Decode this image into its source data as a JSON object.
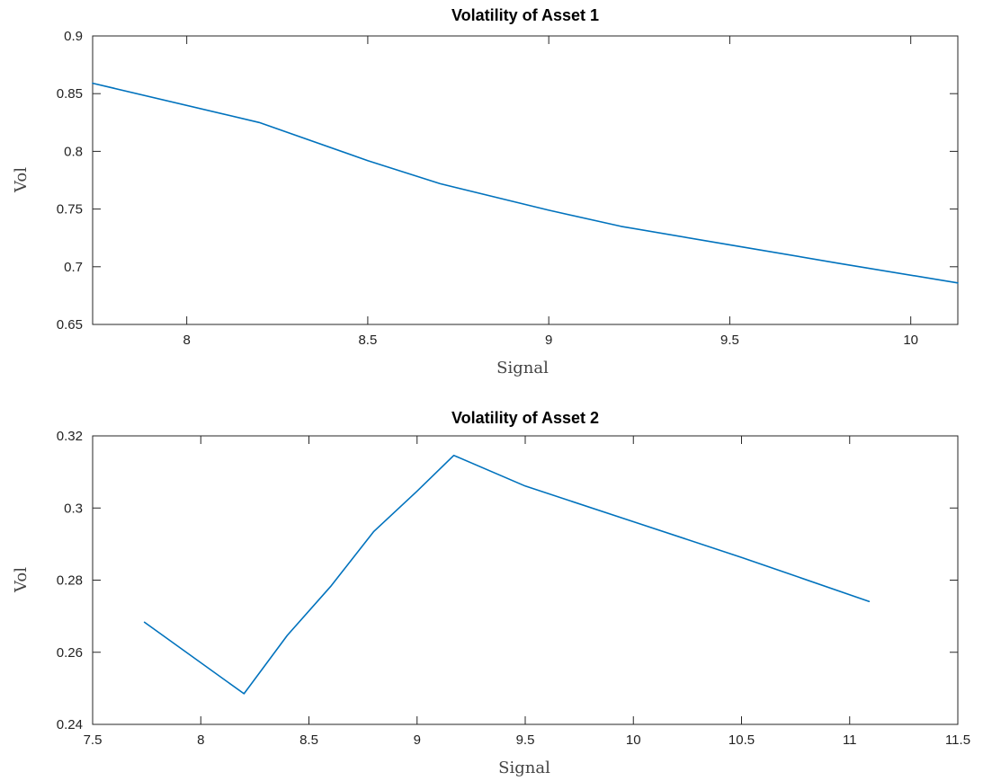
{
  "chart_data": [
    {
      "type": "line",
      "title": "Volatility of Asset 1",
      "xlabel": "Signal",
      "ylabel": "Vol",
      "xlim": [
        7.74,
        10.13
      ],
      "ylim": [
        0.65,
        0.9
      ],
      "xticks": [
        8,
        8.5,
        9,
        9.5,
        10
      ],
      "xtick_labels": [
        "8",
        "8.5",
        "9",
        "9.5",
        "10"
      ],
      "yticks": [
        0.65,
        0.7,
        0.75,
        0.8,
        0.85,
        0.9
      ],
      "ytick_labels": [
        "0.65",
        "0.7",
        "0.75",
        "0.8",
        "0.85",
        "0.9"
      ],
      "color": "#0072BD",
      "series": [
        {
          "x": [
            7.74,
            8.2,
            8.5,
            8.7,
            9.0,
            9.2,
            9.5,
            9.8,
            10.13
          ],
          "values": [
            0.859,
            0.825,
            0.792,
            0.772,
            0.749,
            0.735,
            0.719,
            0.703,
            0.686
          ]
        }
      ]
    },
    {
      "type": "line",
      "title": "Volatility of Asset 2",
      "xlabel": "Signal",
      "ylabel": "Vol",
      "xlim": [
        7.5,
        11.5
      ],
      "ylim": [
        0.24,
        0.32
      ],
      "xticks": [
        7.5,
        8,
        8.5,
        9,
        9.5,
        10,
        10.5,
        11,
        11.5
      ],
      "xtick_labels": [
        "7.5",
        "8",
        "8.5",
        "9",
        "9.5",
        "10",
        "10.5",
        "11",
        "11.5"
      ],
      "yticks": [
        0.24,
        0.26,
        0.28,
        0.3,
        0.32
      ],
      "ytick_labels": [
        "0.24",
        "0.26",
        "0.28",
        "0.3",
        "0.32"
      ],
      "color": "#0072BD",
      "series": [
        {
          "x": [
            7.74,
            8.2,
            8.4,
            8.6,
            8.8,
            9.0,
            9.17,
            9.5,
            10.0,
            10.5,
            11.09
          ],
          "values": [
            0.2683,
            0.2485,
            0.2647,
            0.2782,
            0.2935,
            0.3047,
            0.3146,
            0.3061,
            0.2962,
            0.2863,
            0.2741
          ]
        }
      ]
    }
  ]
}
